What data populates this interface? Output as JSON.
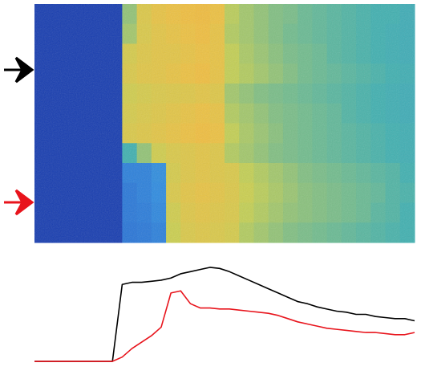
{
  "chart_data": [
    {
      "type": "heatmap",
      "colorscale": [
        "#0d2a9a",
        "#1f4fc8",
        "#2e8ce0",
        "#40b0b0",
        "#c8d050",
        "#f0c040",
        "#f09a30"
      ],
      "values": [
        [
          0.08,
          0.08,
          0.08,
          0.08,
          0.08,
          0.08,
          0.6,
          0.75,
          0.8,
          0.82,
          0.84,
          0.85,
          0.82,
          0.65,
          0.62,
          0.6,
          0.58,
          0.57,
          0.55,
          0.54,
          0.53,
          0.52,
          0.51,
          0.5,
          0.5,
          0.48
        ],
        [
          0.08,
          0.08,
          0.08,
          0.08,
          0.08,
          0.08,
          0.62,
          0.74,
          0.78,
          0.8,
          0.82,
          0.84,
          0.8,
          0.64,
          0.62,
          0.6,
          0.58,
          0.56,
          0.55,
          0.54,
          0.53,
          0.52,
          0.51,
          0.5,
          0.49,
          0.48
        ],
        [
          0.08,
          0.08,
          0.08,
          0.08,
          0.08,
          0.08,
          0.72,
          0.76,
          0.78,
          0.78,
          0.8,
          0.82,
          0.8,
          0.66,
          0.63,
          0.61,
          0.59,
          0.57,
          0.56,
          0.55,
          0.53,
          0.52,
          0.51,
          0.5,
          0.49,
          0.48
        ],
        [
          0.08,
          0.08,
          0.08,
          0.08,
          0.08,
          0.08,
          0.74,
          0.77,
          0.78,
          0.8,
          0.82,
          0.84,
          0.8,
          0.66,
          0.64,
          0.62,
          0.6,
          0.58,
          0.56,
          0.55,
          0.54,
          0.53,
          0.52,
          0.51,
          0.5,
          0.49
        ],
        [
          0.08,
          0.08,
          0.08,
          0.08,
          0.08,
          0.08,
          0.7,
          0.72,
          0.74,
          0.75,
          0.76,
          0.78,
          0.76,
          0.62,
          0.6,
          0.58,
          0.57,
          0.56,
          0.55,
          0.54,
          0.53,
          0.52,
          0.51,
          0.5,
          0.49,
          0.48
        ],
        [
          0.08,
          0.08,
          0.08,
          0.08,
          0.08,
          0.08,
          0.72,
          0.74,
          0.76,
          0.78,
          0.8,
          0.82,
          0.8,
          0.64,
          0.62,
          0.6,
          0.58,
          0.57,
          0.56,
          0.55,
          0.54,
          0.52,
          0.51,
          0.5,
          0.49,
          0.48
        ],
        [
          0.08,
          0.08,
          0.08,
          0.08,
          0.08,
          0.08,
          0.74,
          0.76,
          0.78,
          0.8,
          0.82,
          0.84,
          0.82,
          0.66,
          0.63,
          0.61,
          0.59,
          0.57,
          0.56,
          0.55,
          0.54,
          0.53,
          0.52,
          0.51,
          0.5,
          0.49
        ],
        [
          0.08,
          0.08,
          0.08,
          0.08,
          0.08,
          0.08,
          0.5,
          0.6,
          0.7,
          0.74,
          0.76,
          0.78,
          0.76,
          0.64,
          0.62,
          0.6,
          0.58,
          0.57,
          0.56,
          0.55,
          0.54,
          0.53,
          0.52,
          0.51,
          0.5,
          0.49
        ],
        [
          0.08,
          0.08,
          0.08,
          0.08,
          0.08,
          0.08,
          0.3,
          0.3,
          0.34,
          0.72,
          0.76,
          0.78,
          0.76,
          0.74,
          0.66,
          0.64,
          0.62,
          0.6,
          0.58,
          0.57,
          0.56,
          0.55,
          0.54,
          0.53,
          0.52,
          0.5
        ],
        [
          0.08,
          0.08,
          0.08,
          0.08,
          0.08,
          0.08,
          0.28,
          0.3,
          0.33,
          0.74,
          0.78,
          0.8,
          0.78,
          0.75,
          0.68,
          0.65,
          0.63,
          0.61,
          0.59,
          0.58,
          0.57,
          0.56,
          0.55,
          0.54,
          0.52,
          0.51
        ],
        [
          0.08,
          0.08,
          0.08,
          0.08,
          0.08,
          0.08,
          0.28,
          0.29,
          0.32,
          0.7,
          0.76,
          0.78,
          0.76,
          0.74,
          0.66,
          0.64,
          0.62,
          0.6,
          0.59,
          0.58,
          0.57,
          0.56,
          0.55,
          0.53,
          0.52,
          0.5
        ],
        [
          0.08,
          0.08,
          0.08,
          0.08,
          0.08,
          0.08,
          0.27,
          0.28,
          0.3,
          0.68,
          0.74,
          0.76,
          0.74,
          0.72,
          0.64,
          0.62,
          0.6,
          0.58,
          0.57,
          0.56,
          0.55,
          0.54,
          0.53,
          0.52,
          0.51,
          0.5
        ]
      ]
    },
    {
      "type": "line",
      "series": [
        {
          "color": "#000000",
          "values": [
            0.06,
            0.06,
            0.06,
            0.06,
            0.06,
            0.06,
            0.06,
            0.06,
            0.06,
            0.78,
            0.8,
            0.8,
            0.81,
            0.82,
            0.84,
            0.88,
            0.9,
            0.92,
            0.94,
            0.93,
            0.9,
            0.86,
            0.82,
            0.78,
            0.74,
            0.7,
            0.66,
            0.62,
            0.6,
            0.57,
            0.55,
            0.53,
            0.52,
            0.5,
            0.5,
            0.48,
            0.47,
            0.46,
            0.46,
            0.44
          ]
        },
        {
          "color": "#e8141c",
          "values": [
            0.06,
            0.06,
            0.06,
            0.06,
            0.06,
            0.06,
            0.06,
            0.06,
            0.06,
            0.1,
            0.18,
            0.24,
            0.3,
            0.38,
            0.7,
            0.72,
            0.6,
            0.56,
            0.56,
            0.55,
            0.55,
            0.54,
            0.53,
            0.52,
            0.51,
            0.49,
            0.46,
            0.43,
            0.41,
            0.39,
            0.37,
            0.36,
            0.35,
            0.34,
            0.33,
            0.33,
            0.32,
            0.31,
            0.31,
            0.33
          ]
        }
      ]
    }
  ]
}
